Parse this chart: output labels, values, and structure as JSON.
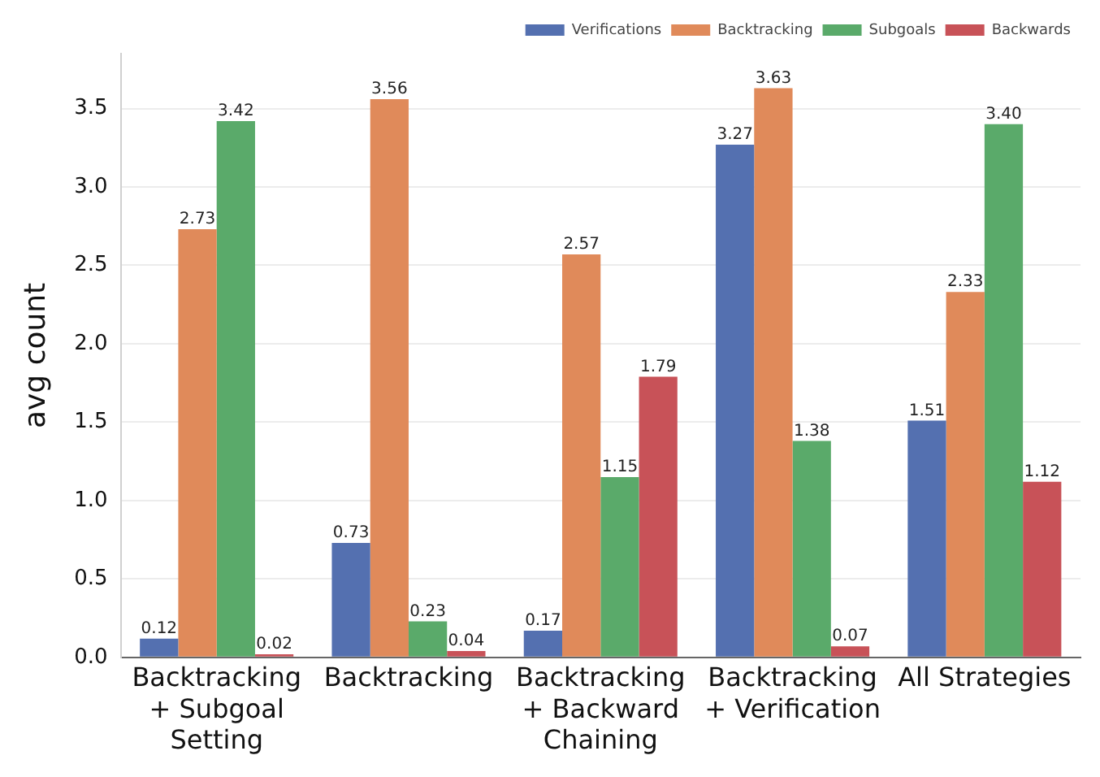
{
  "chart_data": {
    "type": "bar",
    "ylabel": "avg count",
    "categories": [
      "Backtracking\n+ Subgoal\nSetting",
      "Backtracking",
      "Backtracking\n+ Backward\nChaining",
      "Backtracking\n+ Verification",
      "All Strategies"
    ],
    "series": [
      {
        "name": "Verifications",
        "color": "#5470b0",
        "values": [
          0.12,
          0.73,
          0.17,
          3.27,
          1.51
        ],
        "value_labels": [
          "0.12",
          "0.73",
          "0.17",
          "3.27",
          "1.51"
        ]
      },
      {
        "name": "Backtracking",
        "color": "#e08a5a",
        "values": [
          2.73,
          3.56,
          2.57,
          3.63,
          2.33
        ],
        "value_labels": [
          "2.73",
          "3.56",
          "2.57",
          "3.63",
          "2.33"
        ]
      },
      {
        "name": "Subgoals",
        "color": "#5aaa6a",
        "values": [
          3.42,
          0.23,
          1.15,
          1.38,
          3.4
        ],
        "value_labels": [
          "3.42",
          "0.23",
          "1.15",
          "1.38",
          "3.40"
        ]
      },
      {
        "name": "Backwards",
        "color": "#c85258",
        "values": [
          0.02,
          0.04,
          1.79,
          0.07,
          1.12
        ],
        "value_labels": [
          "0.02",
          "0.04",
          "1.79",
          "0.07",
          "1.12"
        ]
      }
    ],
    "ylim": [
      0,
      3.85
    ],
    "yticks": [
      {
        "value": 0,
        "label": "0.0"
      },
      {
        "value": 0.5,
        "label": "0.5"
      },
      {
        "value": 1,
        "label": "1.0"
      },
      {
        "value": 1.5,
        "label": "1.5"
      },
      {
        "value": 2,
        "label": "2.0"
      },
      {
        "value": 2.5,
        "label": "2.5"
      },
      {
        "value": 3,
        "label": "3.0"
      },
      {
        "value": 3.5,
        "label": "3.5"
      }
    ],
    "grid": "y",
    "legend": "top right"
  }
}
